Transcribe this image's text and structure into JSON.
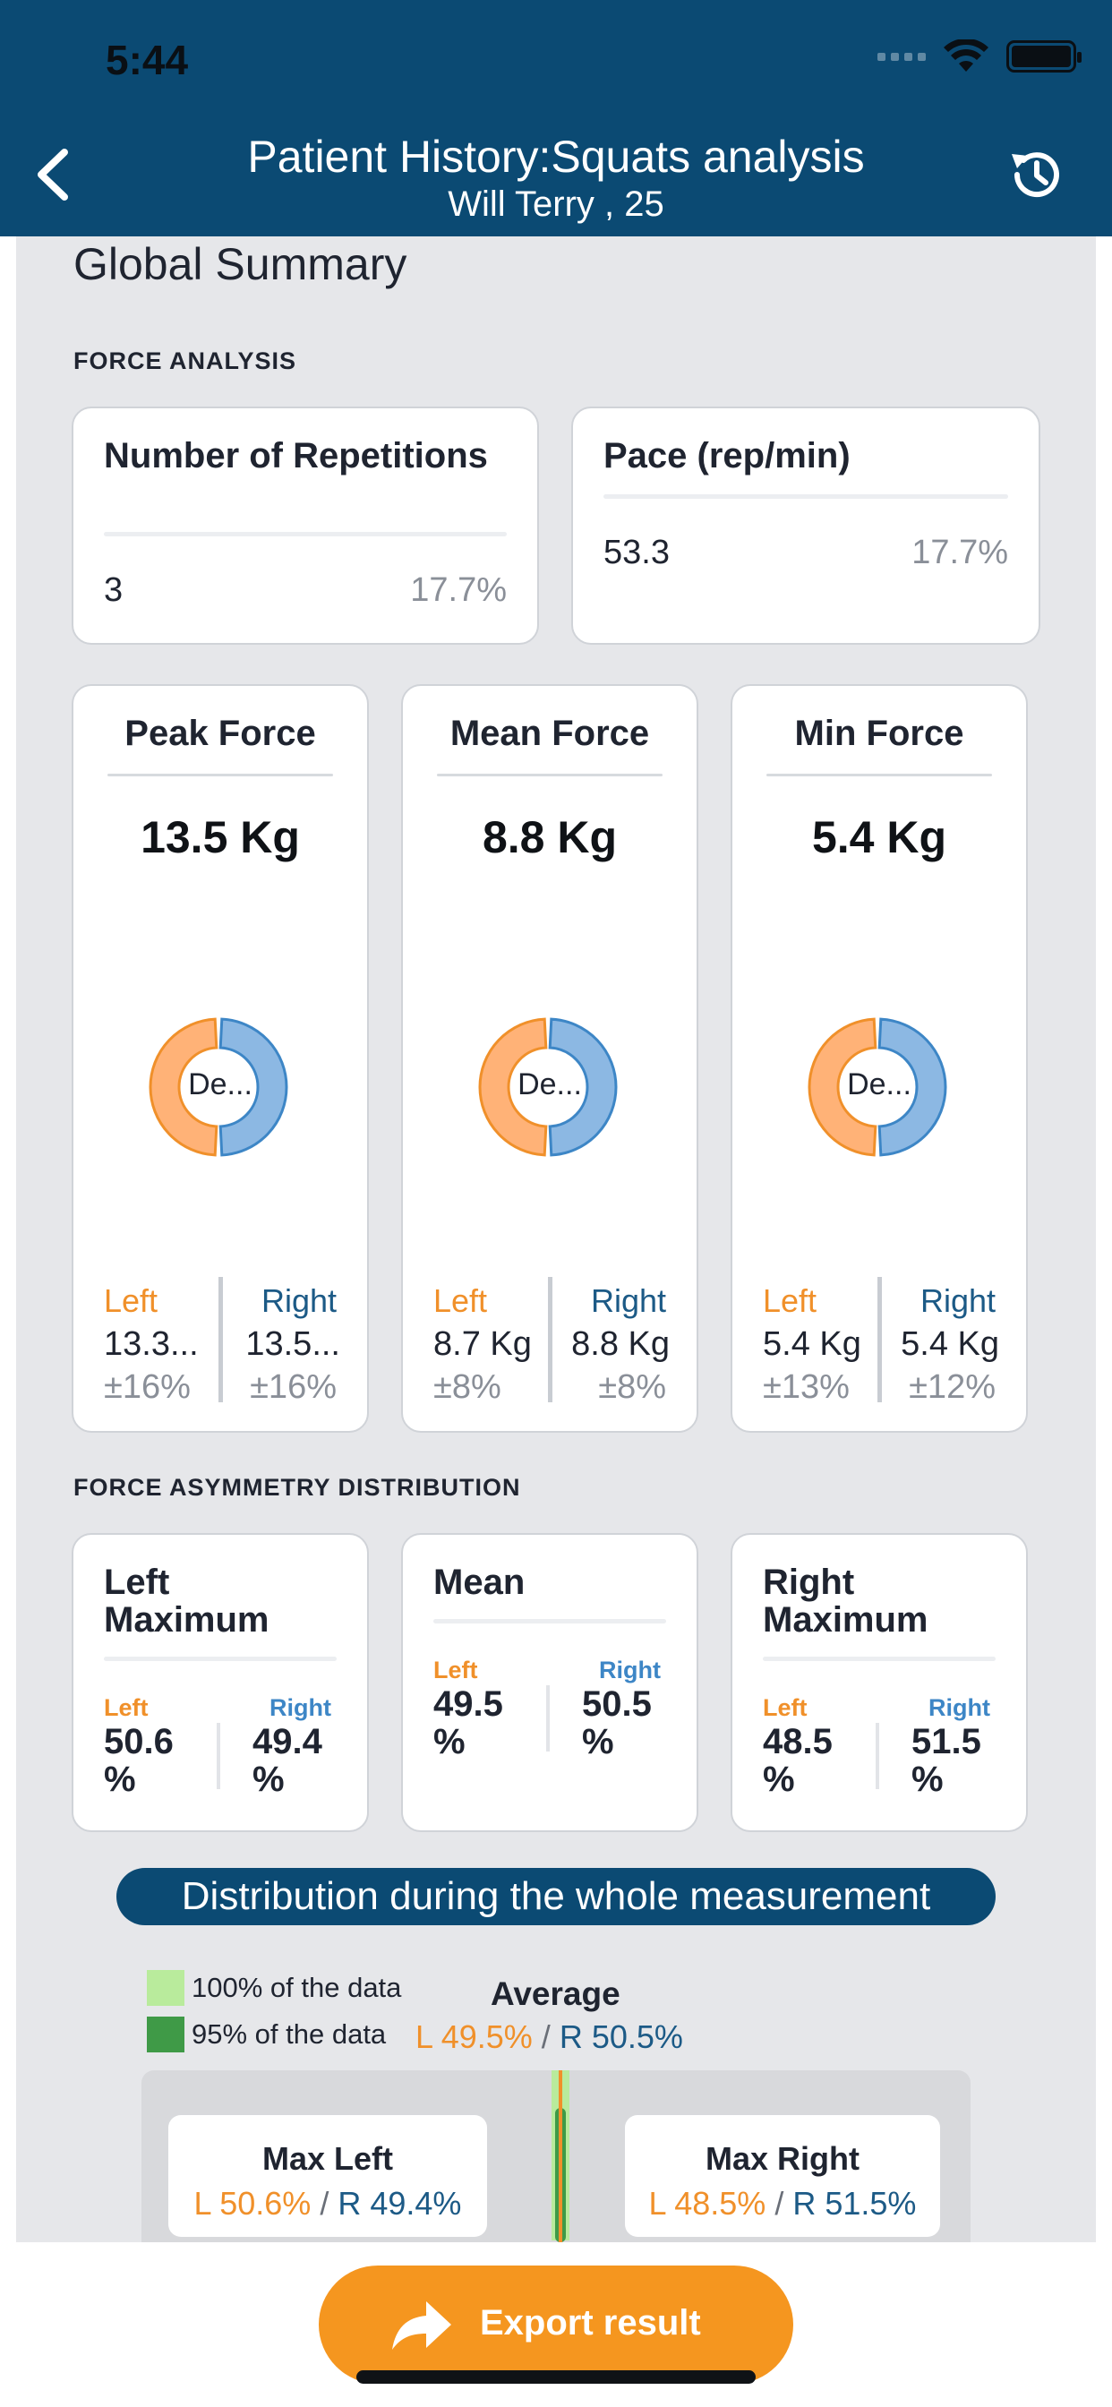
{
  "status": {
    "time": "5:44"
  },
  "header": {
    "title": "Patient History:Squats analysis",
    "subtitle": "Will Terry , 25"
  },
  "summary": {
    "title": "Global Summary"
  },
  "force_analysis": {
    "section_title": "FORCE ANALYSIS",
    "repetitions": {
      "label": "Number of Repetitions",
      "value": "3",
      "percent": "17.7%"
    },
    "pace": {
      "label": "Pace (rep/min)",
      "value": "53.3",
      "percent": "17.7%"
    },
    "cards": [
      {
        "title": "Peak Force",
        "value": "13.5 Kg",
        "donut_label": "De...",
        "left_label": "Left",
        "right_label": "Right",
        "left_value": "13.3...",
        "right_value": "13.5...",
        "left_pct": "±16%",
        "right_pct": "±16%",
        "left_share": 0.5,
        "right_share": 0.5
      },
      {
        "title": "Mean Force",
        "value": "8.8 Kg",
        "donut_label": "De...",
        "left_label": "Left",
        "right_label": "Right",
        "left_value": "8.7 Kg",
        "right_value": "8.8 Kg",
        "left_pct": "±8%",
        "right_pct": "±8%",
        "left_share": 0.5,
        "right_share": 0.5
      },
      {
        "title": "Min Force",
        "value": "5.4 Kg",
        "donut_label": "De...",
        "left_label": "Left",
        "right_label": "Right",
        "left_value": "5.4 Kg",
        "right_value": "5.4 Kg",
        "left_pct": "±13%",
        "right_pct": "±12%",
        "left_share": 0.5,
        "right_share": 0.5
      }
    ]
  },
  "asymmetry": {
    "section_title": "FORCE ASYMMETRY DISTRIBUTION",
    "cards": [
      {
        "title": "Left Maximum",
        "left_label": "Left",
        "right_label": "Right",
        "left_value": "50.6 %",
        "right_value": "49.4 %"
      },
      {
        "title": "Mean",
        "left_label": "Left",
        "right_label": "Right",
        "left_value": "49.5 %",
        "right_value": "50.5 %"
      },
      {
        "title": "Right Maximum",
        "left_label": "Left",
        "right_label": "Right",
        "left_value": "48.5 %",
        "right_value": "51.5 %"
      }
    ]
  },
  "distribution": {
    "title": "Distribution during the whole measurement",
    "legend": [
      {
        "label": "100% of the data",
        "color": "#b9eb9c"
      },
      {
        "label": "95% of the data",
        "color": "#3f9a47"
      }
    ],
    "average_title": "Average",
    "average_left": "L 49.5%",
    "average_sep": "/",
    "average_right": "R 50.5%",
    "max_left": {
      "title": "Max Left",
      "left": "L 50.6%",
      "sep": "/",
      "right": "R 49.4%"
    },
    "max_right": {
      "title": "Max Right",
      "left": "L 48.5%",
      "sep": "/",
      "right": "R 51.5%"
    }
  },
  "footer": {
    "export_label": "Export result"
  },
  "colors": {
    "header": "#0b4a73",
    "left": "#f0902a",
    "right": "#3d86c6",
    "accent": "#f5961f"
  }
}
